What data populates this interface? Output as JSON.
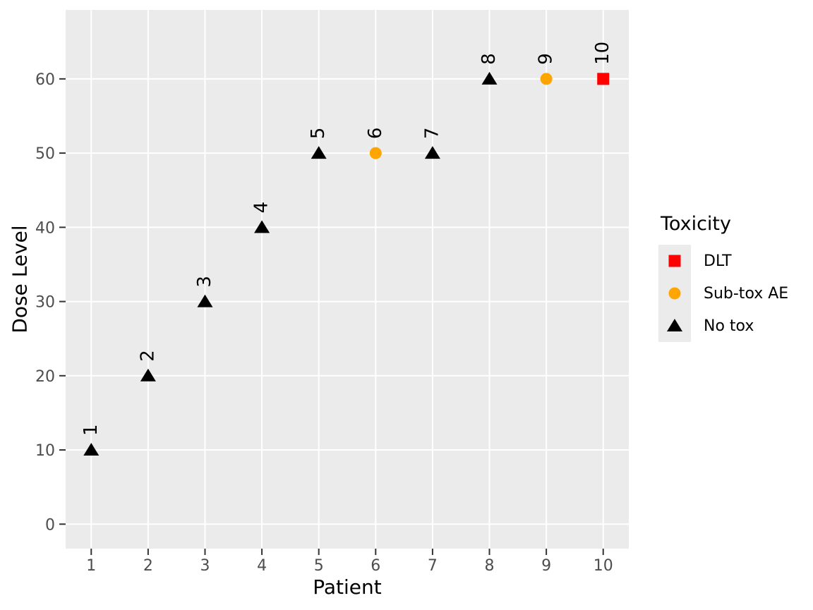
{
  "chart_data": {
    "type": "scatter",
    "title": "",
    "xlabel": "Patient",
    "ylabel": "Dose Level",
    "x_ticks": [
      1,
      2,
      3,
      4,
      5,
      6,
      7,
      8,
      9,
      10
    ],
    "y_ticks": [
      0,
      10,
      20,
      30,
      40,
      50,
      60
    ],
    "xlim": [
      0.55,
      10.45
    ],
    "ylim": [
      -3.3,
      69.3
    ],
    "grid": "major gridlines only, white on gray panel",
    "points": [
      {
        "patient": 1,
        "dose": 10,
        "toxicity": "No tox",
        "label": "1"
      },
      {
        "patient": 2,
        "dose": 20,
        "toxicity": "No tox",
        "label": "2"
      },
      {
        "patient": 3,
        "dose": 30,
        "toxicity": "No tox",
        "label": "3"
      },
      {
        "patient": 4,
        "dose": 40,
        "toxicity": "No tox",
        "label": "4"
      },
      {
        "patient": 5,
        "dose": 50,
        "toxicity": "No tox",
        "label": "5"
      },
      {
        "patient": 6,
        "dose": 50,
        "toxicity": "Sub-tox AE",
        "label": "6"
      },
      {
        "patient": 7,
        "dose": 50,
        "toxicity": "No tox",
        "label": "7"
      },
      {
        "patient": 8,
        "dose": 60,
        "toxicity": "No tox",
        "label": "8"
      },
      {
        "patient": 9,
        "dose": 60,
        "toxicity": "Sub-tox AE",
        "label": "9"
      },
      {
        "patient": 10,
        "dose": 60,
        "toxicity": "DLT",
        "label": "10"
      }
    ],
    "legend": {
      "title": "Toxicity",
      "position": "right",
      "items": [
        {
          "label": "DLT",
          "shape": "square",
          "color": "#FF0000"
        },
        {
          "label": "Sub-tox AE",
          "shape": "circle",
          "color": "#FFA500"
        },
        {
          "label": "No tox",
          "shape": "triangle",
          "color": "#000000"
        }
      ]
    },
    "colors": {
      "panel_bg": "#EBEBEB",
      "grid": "#FFFFFF",
      "tick_text": "#4D4D4D",
      "tick_mark": "#333333",
      "axis_title": "#000000",
      "dlt": "#FF0000",
      "subtox": "#FFA500",
      "notox": "#000000"
    }
  }
}
